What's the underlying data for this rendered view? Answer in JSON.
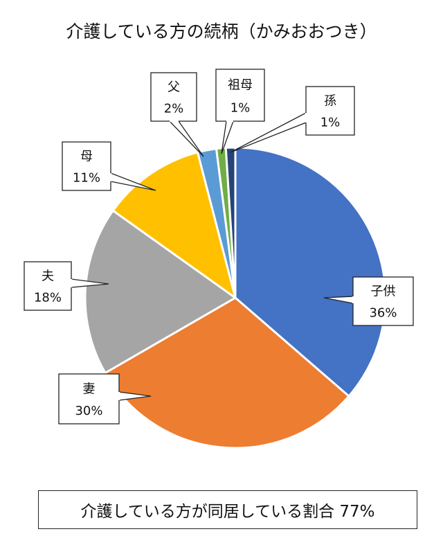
{
  "chart_data": {
    "type": "pie",
    "title": "介護している方の続柄（かみおおつき）",
    "categories": [
      "子供",
      "妻",
      "夫",
      "母",
      "父",
      "祖母",
      "孫"
    ],
    "values": [
      36,
      30,
      18,
      11,
      2,
      1,
      1
    ],
    "labels": [
      "36%",
      "30%",
      "18%",
      "11%",
      "2%",
      "1%",
      "1%"
    ],
    "colors": [
      "#4472C4",
      "#ED7D31",
      "#A5A5A5",
      "#FFC000",
      "#5B9BD5",
      "#70AD47",
      "#264478"
    ],
    "start": "12 o'clock",
    "direction": "clockwise",
    "legend": "callouts"
  },
  "summary": "介護している方が同居している割合 77%"
}
